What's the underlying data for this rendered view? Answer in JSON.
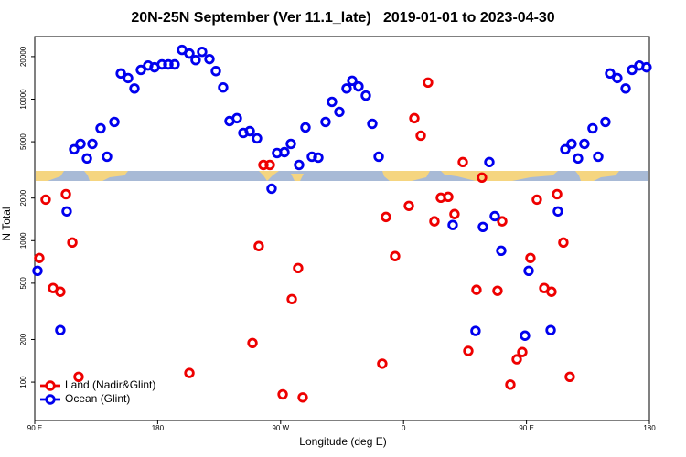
{
  "chart_data": {
    "type": "scatter",
    "title": "20N-25N September (Ver 11.1_late)   2019-01-01 to 2023-04-30",
    "x_label": "Longitude (deg E)",
    "y_label": "N Total",
    "xlim": [
      90,
      540
    ],
    "xticks": [
      {
        "value": 90,
        "label": "90 E"
      },
      180,
      {
        "value": 270,
        "label": "90 W"
      },
      {
        "value": 360,
        "label": "0"
      },
      {
        "value": 450,
        "label": "90 E"
      },
      {
        "value": 540,
        "label": "180"
      }
    ],
    "ylim": [
      53.6,
      27700
    ],
    "yticks": [
      100,
      200,
      500,
      1000,
      2000,
      5000,
      10000,
      20000
    ],
    "log_y": true,
    "grid": false,
    "legend": "lower left",
    "series": [
      {
        "name": "Land (Nadir&Glint)",
        "color": "#ee0000",
        "x": [
          93.3,
          98,
          103.4,
          108.7,
          112.8,
          117.5,
          122.1,
          203.2,
          249.4,
          254,
          257.4,
          262.1,
          271.5,
          278.2,
          282.8,
          286.2,
          344.4,
          347.1,
          353.8,
          363.9,
          367.9,
          372.6,
          377.9,
          382.6,
          387.3,
          392.7,
          397.3,
          403.4,
          407.4,
          413.4,
          417.4,
          428.8,
          432.2,
          438.2,
          442.9,
          446.9,
          452.9,
          457.6,
          463,
          468.3,
          472.4,
          477,
          481.7
        ],
        "y": [
          754,
          1950,
          462,
          435,
          2130,
          970,
          109,
          116,
          189,
          915,
          3430,
          3430,
          82,
          386,
          640,
          78,
          135,
          1470,
          777,
          1760,
          7330,
          5520,
          13100,
          1370,
          2010,
          2040,
          1540,
          3590,
          166,
          449,
          2790,
          442,
          1370,
          96,
          145,
          163,
          754,
          1950,
          462,
          435,
          2130,
          970,
          109
        ]
      },
      {
        "name": "Ocean (Glint)",
        "color": "#0000ee",
        "x": [
          118.8,
          123.5,
          128.2,
          132.2,
          138.2,
          142.9,
          148.3,
          153,
          158.3,
          163,
          167.7,
          173,
          177.7,
          183.1,
          187.8,
          192.4,
          197.8,
          203.2,
          207.8,
          212.5,
          217.9,
          222.6,
          227.9,
          232.6,
          238,
          242.7,
          247.4,
          252.7,
          267.4,
          272.8,
          277.5,
          283.5,
          288.2,
          292.9,
          297.6,
          302.9,
          307.6,
          313,
          318.3,
          322.4,
          327,
          332.4,
          337.1,
          341.8,
          422.8,
          478.4,
          483,
          487.7,
          492.4,
          498.4,
          502.5,
          507.8,
          511.2,
          516.5,
          522.6,
          527.3,
          532.6,
          537.9,
          92,
          108.7,
          113.4,
          263.4,
          396,
          412.7,
          418.1,
          426.8,
          431.5,
          448.9,
          451.6,
          467.7,
          473
        ],
        "y": [
          4420,
          4830,
          3810,
          4830,
          6220,
          3920,
          6900,
          15200,
          14100,
          11900,
          16100,
          17300,
          16800,
          17600,
          17600,
          17600,
          22300,
          21000,
          18900,
          21600,
          19200,
          15800,
          12100,
          7000,
          7330,
          5770,
          5940,
          5280,
          4160,
          4220,
          4830,
          3430,
          6310,
          3920,
          3860,
          6900,
          9570,
          8130,
          11900,
          13500,
          12300,
          10600,
          6700,
          3920,
          3590,
          4420,
          4830,
          3810,
          4830,
          6220,
          3920,
          6900,
          15200,
          14100,
          11900,
          16100,
          17300,
          16800,
          612,
          233,
          1610,
          2330,
          1290,
          230,
          1250,
          1490,
          849,
          213,
          612,
          233,
          1610
        ]
      }
    ]
  }
}
